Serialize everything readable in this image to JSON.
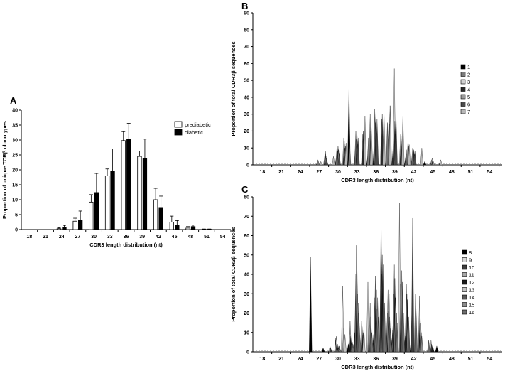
{
  "chart_data": [
    {
      "panel": "A",
      "type": "bar",
      "xlabel": "CDR3 length distribution (nt)",
      "ylabel": "Proportion of unique TCRβ clonotypes",
      "ylim": [
        0,
        40
      ],
      "yticks": [
        0,
        5,
        10,
        15,
        20,
        25,
        30,
        35,
        40
      ],
      "categories": [
        "18",
        "21",
        "24",
        "27",
        "30",
        "33",
        "36",
        "39",
        "42",
        "45",
        "48",
        "51",
        "54"
      ],
      "series": [
        {
          "name": "prediabetic",
          "fill": "#ffffff",
          "values": [
            0,
            0,
            0.3,
            2.8,
            9.2,
            18,
            29.8,
            24.5,
            10,
            2.5,
            0.5,
            0.1,
            0
          ],
          "errors": [
            0,
            0,
            0.3,
            1,
            2.5,
            2.3,
            3,
            1.8,
            3.8,
            2,
            0.5,
            0.1,
            0
          ]
        },
        {
          "name": "diabetic",
          "fill": "#000000",
          "values": [
            0,
            0,
            0.8,
            3,
            12.4,
            19.6,
            30.2,
            23.8,
            7.4,
            1.4,
            1,
            0.1,
            0
          ],
          "errors": [
            0,
            0,
            0.6,
            3.2,
            6.4,
            7.4,
            5.4,
            6.5,
            3.8,
            1.6,
            0.5,
            0.1,
            0
          ]
        }
      ],
      "legend_position": "right",
      "grid": false
    },
    {
      "panel": "B",
      "type": "area",
      "xlabel": "CDR3 length distribution (nt)",
      "ylabel": "Proportion of total CDR3β sequences",
      "ylim": [
        0,
        90
      ],
      "yticks": [
        0,
        10,
        20,
        30,
        40,
        50,
        60,
        70,
        80,
        90
      ],
      "xticks": [
        18,
        21,
        24,
        27,
        30,
        33,
        36,
        39,
        42,
        45,
        48,
        51,
        54
      ],
      "xlim": [
        16.5,
        56
      ],
      "legend_position": "right",
      "grid": false,
      "series": [
        {
          "name": "1",
          "fill": "#000000",
          "points": [
            [
              27,
              1
            ],
            [
              30,
              4
            ],
            [
              32,
              47
            ],
            [
              33,
              8
            ],
            [
              35,
              6
            ],
            [
              36,
              12
            ],
            [
              38,
              8
            ],
            [
              39,
              10
            ],
            [
              41,
              5
            ],
            [
              42,
              4
            ],
            [
              44,
              2
            ],
            [
              45,
              1
            ]
          ]
        },
        {
          "name": "2",
          "fill": "#7a7a7a",
          "points": [
            [
              27,
              3
            ],
            [
              30,
              10
            ],
            [
              32,
              12
            ],
            [
              33,
              20
            ],
            [
              35,
              16
            ],
            [
              36,
              33
            ],
            [
              38,
              25
            ],
            [
              39,
              22
            ],
            [
              41,
              9
            ],
            [
              42,
              10
            ],
            [
              45,
              3
            ]
          ]
        },
        {
          "name": "3",
          "fill": "#d0d0d0",
          "points": [
            [
              28,
              6
            ],
            [
              30,
              8
            ],
            [
              31,
              16
            ],
            [
              33,
              15
            ],
            [
              34,
              18
            ],
            [
              36,
              25
            ],
            [
              37,
              27
            ],
            [
              39,
              57
            ],
            [
              40,
              18
            ],
            [
              42,
              7
            ],
            [
              45,
              4
            ]
          ]
        },
        {
          "name": "4",
          "fill": "#2a2a2a",
          "points": [
            [
              28,
              8
            ],
            [
              30,
              11
            ],
            [
              31,
              14
            ],
            [
              33,
              19
            ],
            [
              34,
              20
            ],
            [
              36,
              31
            ],
            [
              37,
              30
            ],
            [
              39,
              26
            ],
            [
              40,
              17
            ],
            [
              42,
              9
            ],
            [
              45,
              3
            ]
          ]
        },
        {
          "name": "5",
          "fill": "#9a9a9a",
          "points": [
            [
              28,
              5
            ],
            [
              30,
              9
            ],
            [
              31,
              10
            ],
            [
              33,
              12
            ],
            [
              35,
              30
            ],
            [
              36,
              19
            ],
            [
              38,
              35
            ],
            [
              39,
              18
            ],
            [
              41,
              15
            ],
            [
              42,
              6
            ],
            [
              45,
              2
            ]
          ]
        },
        {
          "name": "6",
          "fill": "#4a4a4a",
          "points": [
            [
              28,
              4
            ],
            [
              30,
              7
            ],
            [
              31,
              11
            ],
            [
              33,
              16
            ],
            [
              35,
              20
            ],
            [
              36,
              27
            ],
            [
              38,
              24
            ],
            [
              39,
              30
            ],
            [
              41,
              11
            ],
            [
              42,
              8
            ],
            [
              46,
              2
            ]
          ]
        },
        {
          "name": "7",
          "fill": "#b8b8b8",
          "points": [
            [
              27,
              2
            ],
            [
              29,
              5
            ],
            [
              31,
              13
            ],
            [
              34,
              29
            ],
            [
              35,
              22
            ],
            [
              37,
              33
            ],
            [
              38,
              35
            ],
            [
              40,
              29
            ],
            [
              41,
              12
            ],
            [
              43,
              10
            ],
            [
              46,
              3
            ]
          ]
        }
      ]
    },
    {
      "panel": "C",
      "type": "area",
      "xlabel": "CDR3 length distribution (nt)",
      "ylabel": "Proportion of total CDR3β sequences",
      "ylim": [
        0,
        80
      ],
      "yticks": [
        0,
        10,
        20,
        30,
        40,
        50,
        60,
        70,
        80
      ],
      "xticks": [
        18,
        21,
        24,
        27,
        30,
        33,
        36,
        39,
        42,
        45,
        48,
        51,
        54
      ],
      "xlim": [
        16.5,
        56
      ],
      "legend_position": "right",
      "grid": false,
      "series": [
        {
          "name": "8",
          "fill": "#000000",
          "points": [
            [
              26,
              49
            ],
            [
              28,
              2
            ],
            [
              29,
              1
            ],
            [
              30,
              7
            ],
            [
              32,
              4
            ],
            [
              33,
              10
            ],
            [
              35,
              6
            ],
            [
              36,
              9
            ],
            [
              38,
              8
            ],
            [
              39,
              11
            ],
            [
              41,
              8
            ],
            [
              42,
              9
            ],
            [
              46,
              3
            ]
          ]
        },
        {
          "name": "9",
          "fill": "#d8d8d8",
          "points": [
            [
              29,
              3
            ],
            [
              30,
              8
            ],
            [
              31,
              34
            ],
            [
              33,
              12
            ],
            [
              34,
              16
            ],
            [
              35,
              36
            ],
            [
              36,
              10
            ],
            [
              37,
              26
            ],
            [
              39,
              16
            ],
            [
              40,
              77
            ],
            [
              42,
              25
            ],
            [
              45,
              6
            ]
          ]
        },
        {
          "name": "10",
          "fill": "#3c3c3c",
          "points": [
            [
              29,
              2
            ],
            [
              30,
              5
            ],
            [
              32,
              10
            ],
            [
              33,
              40
            ],
            [
              34,
              13
            ],
            [
              36,
              28
            ],
            [
              37,
              70
            ],
            [
              38,
              20
            ],
            [
              39,
              30
            ],
            [
              41,
              35
            ],
            [
              42,
              69
            ],
            [
              43,
              12
            ],
            [
              45,
              4
            ]
          ]
        },
        {
          "name": "11",
          "fill": "#a8a8a8",
          "points": [
            [
              30,
              4
            ],
            [
              31,
              12
            ],
            [
              32,
              16
            ],
            [
              33,
              55
            ],
            [
              35,
              20
            ],
            [
              36,
              39
            ],
            [
              37,
              40
            ],
            [
              38,
              32
            ],
            [
              39,
              45
            ],
            [
              40,
              35
            ],
            [
              41,
              30
            ],
            [
              43,
              29
            ]
          ]
        },
        {
          "name": "12",
          "fill": "#1a1a1a",
          "points": [
            [
              30,
              3
            ],
            [
              32,
              8
            ],
            [
              33,
              45
            ],
            [
              34,
              10
            ],
            [
              35,
              14
            ],
            [
              36,
              38
            ],
            [
              37,
              50
            ],
            [
              38,
              21
            ],
            [
              39,
              38
            ],
            [
              40,
              30
            ],
            [
              41,
              27
            ],
            [
              43,
              20
            ],
            [
              45,
              3
            ]
          ]
        },
        {
          "name": "13",
          "fill": "#c4c4c4",
          "points": [
            [
              30,
              2
            ],
            [
              31,
              9
            ],
            [
              33,
              30
            ],
            [
              34,
              12
            ],
            [
              35,
              25
            ],
            [
              36,
              32
            ],
            [
              37,
              22
            ],
            [
              38,
              30
            ],
            [
              39,
              28
            ],
            [
              40,
              42
            ],
            [
              41,
              22
            ],
            [
              43,
              15
            ]
          ]
        },
        {
          "name": "14",
          "fill": "#5a5a5a",
          "points": [
            [
              30,
              3
            ],
            [
              32,
              6
            ],
            [
              33,
              25
            ],
            [
              35,
              18
            ],
            [
              36,
              22
            ],
            [
              37,
              45
            ],
            [
              38,
              18
            ],
            [
              39,
              24
            ],
            [
              40,
              36
            ],
            [
              41,
              18
            ],
            [
              43,
              10
            ]
          ]
        },
        {
          "name": "15",
          "fill": "#8c8c8c",
          "points": [
            [
              30,
              2
            ],
            [
              32,
              5
            ],
            [
              33,
              20
            ],
            [
              35,
              12
            ],
            [
              36,
              28
            ],
            [
              37,
              30
            ],
            [
              38,
              12
            ],
            [
              39,
              20
            ],
            [
              40,
              25
            ],
            [
              42,
              30
            ],
            [
              43,
              8
            ]
          ]
        },
        {
          "name": "16",
          "fill": "#6e6e6e",
          "points": [
            [
              30,
              1
            ],
            [
              32,
              4
            ],
            [
              33,
              15
            ],
            [
              35,
              10
            ],
            [
              36,
              18
            ],
            [
              37,
              25
            ],
            [
              38,
              10
            ],
            [
              39,
              15
            ],
            [
              40,
              20
            ],
            [
              42,
              22
            ],
            [
              44,
              6
            ]
          ]
        }
      ]
    }
  ]
}
